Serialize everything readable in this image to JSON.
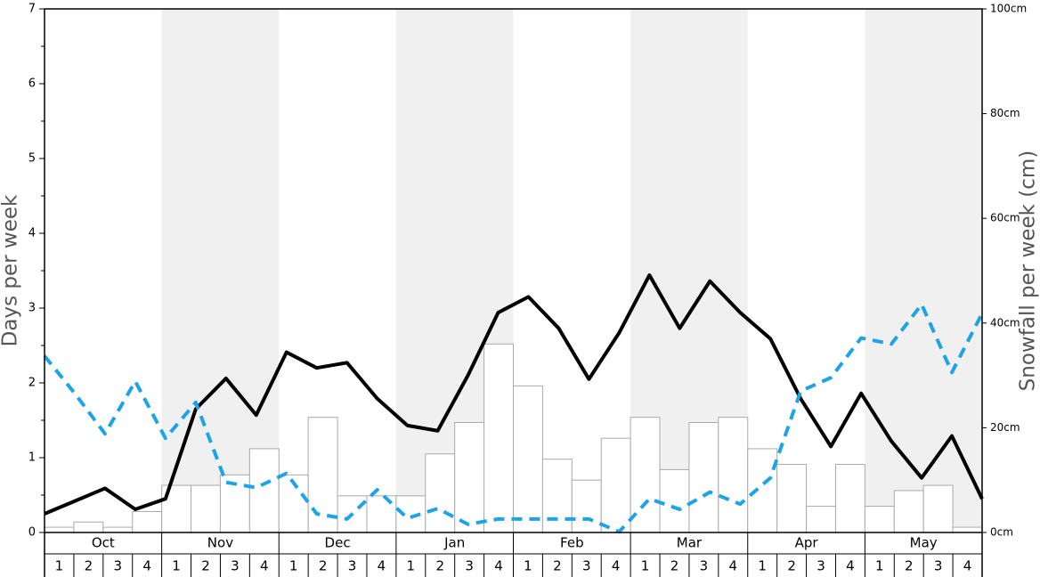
{
  "chart_data": {
    "type": "bar",
    "y_label": "Days per week",
    "y2_label": "Snowfall per week (cm)",
    "months": [
      "Oct",
      "Nov",
      "Dec",
      "Jan",
      "Feb",
      "Mar",
      "Apr",
      "May"
    ],
    "categories": [
      "1",
      "2",
      "3",
      "4",
      "1",
      "2",
      "3",
      "4",
      "1",
      "2",
      "3",
      "4",
      "1",
      "2",
      "3",
      "4",
      "1",
      "2",
      "3",
      "4",
      "1",
      "2",
      "3",
      "4",
      "1",
      "2",
      "3",
      "4",
      "1",
      "2",
      "3",
      "4"
    ],
    "ylim": [
      0,
      7
    ],
    "yticks": [
      0,
      1,
      2,
      3,
      4,
      5,
      6,
      7
    ],
    "y2lim": [
      0,
      100
    ],
    "y2ticks": [
      {
        "value": 0,
        "label": "0cm"
      },
      {
        "value": 20,
        "label": "20cm"
      },
      {
        "value": 40,
        "label": "40cm"
      },
      {
        "value": 60,
        "label": "60cm"
      },
      {
        "value": 80,
        "label": "80cm"
      },
      {
        "value": 100,
        "label": "100cm"
      }
    ],
    "series": [
      {
        "type": "bar",
        "axis": "y2",
        "color": "#ffffff",
        "values": [
          1,
          2,
          1,
          4,
          9,
          9,
          11,
          16,
          11,
          22,
          7,
          7,
          7,
          15,
          21,
          36,
          28,
          14,
          10,
          18,
          22,
          12,
          21,
          22,
          16,
          13,
          5,
          13,
          5,
          8,
          9,
          1
        ]
      },
      {
        "type": "line",
        "color": "#000000",
        "values": [
          0.25,
          0.42,
          0.59,
          0.31,
          0.45,
          1.65,
          2.06,
          1.57,
          2.41,
          2.2,
          2.27,
          1.79,
          1.43,
          1.36,
          2.1,
          2.94,
          3.15,
          2.73,
          2.05,
          2.67,
          3.44,
          2.73,
          3.36,
          2.94,
          2.59,
          1.79,
          1.15,
          1.86,
          1.22,
          0.73,
          1.29,
          0.45
        ]
      },
      {
        "type": "line",
        "dashed": true,
        "color": "#1ea4e6",
        "values": [
          2.36,
          1.86,
          1.32,
          2.02,
          1.26,
          1.74,
          0.67,
          0.6,
          0.79,
          0.25,
          0.18,
          0.57,
          0.19,
          0.32,
          0.11,
          0.18,
          0.18,
          0.18,
          0.18,
          0.01,
          0.45,
          0.31,
          0.54,
          0.38,
          0.73,
          1.89,
          2.07,
          2.6,
          2.52,
          3.05,
          2.14,
          2.93
        ]
      }
    ]
  }
}
